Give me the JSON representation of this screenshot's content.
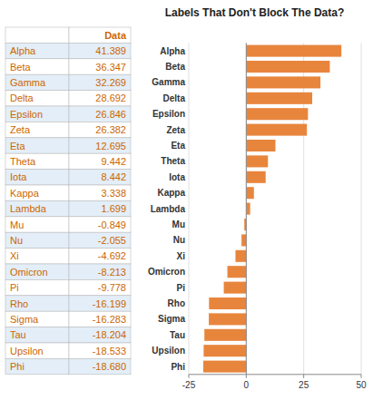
{
  "chart_data": [
    {
      "type": "table",
      "categories": [
        "Alpha",
        "Beta",
        "Gamma",
        "Delta",
        "Epsilon",
        "Zeta",
        "Eta",
        "Theta",
        "Iota",
        "Kappa",
        "Lambda",
        "Mu",
        "Nu",
        "Xi",
        "Omicron",
        "Pi",
        "Rho",
        "Sigma",
        "Tau",
        "Upsilon",
        "Phi"
      ],
      "color": "#CC6600",
      "series": [
        {
          "name": "Data",
          "values": [
            41.389,
            36.347,
            32.269,
            28.692,
            26.846,
            26.382,
            12.695,
            9.442,
            8.442,
            3.338,
            1.699,
            -0.849,
            -2.055,
            -4.692,
            -8.213,
            -9.778,
            -16.199,
            -16.283,
            -18.204,
            -18.533,
            -18.68
          ],
          "value_labels": [
            "41.389",
            "36.347",
            "32.269",
            "28.692",
            "26.846",
            "26.382",
            "12.695",
            "9.442",
            "8.442",
            "3.338",
            "1.699",
            "-0.849",
            "-2.055",
            "-4.692",
            "-8.213",
            "-9.778",
            "-16.199",
            "-16.283",
            "-18.204",
            "-18.533",
            "-18.680"
          ]
        }
      ]
    },
    {
      "type": "bar",
      "orientation": "horizontal",
      "title": "Labels That Don't Block The Data?",
      "categories": [
        "Alpha",
        "Beta",
        "Gamma",
        "Delta",
        "Epsilon",
        "Zeta",
        "Eta",
        "Theta",
        "Iota",
        "Kappa",
        "Lambda",
        "Mu",
        "Nu",
        "Xi",
        "Omicron",
        "Pi",
        "Rho",
        "Sigma",
        "Tau",
        "Upsilon",
        "Phi"
      ],
      "values": [
        41.389,
        36.347,
        32.269,
        28.692,
        26.846,
        26.382,
        12.695,
        9.442,
        8.442,
        3.338,
        1.699,
        -0.849,
        -2.055,
        -4.692,
        -8.213,
        -9.778,
        -16.199,
        -16.283,
        -18.204,
        -18.533,
        -18.68
      ],
      "color": "#E8853D",
      "xlim": [
        -25,
        50
      ],
      "xticks": [
        -25,
        0,
        25,
        50
      ],
      "grid": true
    }
  ]
}
